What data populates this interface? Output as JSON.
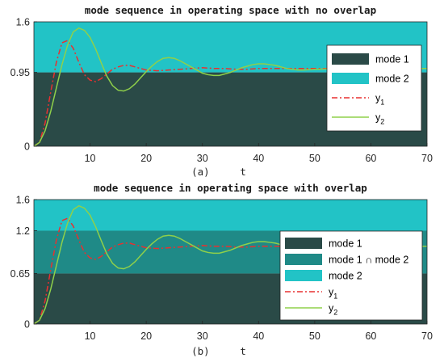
{
  "chart_data": [
    {
      "type": "line",
      "title": "mode sequence in operating space with no overlap",
      "xlabel": "(a)     t",
      "xlim": [
        0,
        70
      ],
      "ylim": [
        0,
        1.6
      ],
      "xticks": [
        10,
        20,
        30,
        40,
        50,
        60,
        70
      ],
      "yticks": [
        "0",
        "0.95",
        "1.6"
      ],
      "grid": false,
      "legend_position": "right",
      "regions": [
        {
          "name": "mode 1",
          "y_range": [
            0,
            0.95
          ],
          "color": "#2a4a47"
        },
        {
          "name": "mode 2",
          "y_range": [
            0.95,
            1.6
          ],
          "color": "#22c3c6"
        }
      ],
      "series": [
        {
          "name": "y",
          "subscript": "1",
          "style": "dash-dot",
          "color": "#e83030",
          "x": [
            0,
            1,
            2,
            3,
            4,
            5,
            6,
            7,
            8,
            9,
            10,
            11,
            12,
            13,
            14,
            15,
            16,
            17,
            18,
            19,
            20,
            22,
            24,
            26,
            28,
            30,
            32,
            34,
            36,
            38,
            40,
            45,
            50,
            55,
            60,
            65,
            70
          ],
          "values": [
            0,
            0.05,
            0.3,
            0.7,
            1.08,
            1.33,
            1.36,
            1.26,
            1.08,
            0.92,
            0.85,
            0.83,
            0.87,
            0.93,
            0.99,
            1.02,
            1.04,
            1.04,
            1.02,
            1.0,
            0.98,
            0.97,
            0.98,
            0.99,
            1.0,
            1.01,
            1.0,
            1.0,
            0.99,
            0.99,
            1.0,
            1.0,
            1.0,
            1.0,
            1.0,
            1.0,
            1.0
          ]
        },
        {
          "name": "y",
          "subscript": "2",
          "style": "solid",
          "color": "#8fd04a",
          "x": [
            0,
            1,
            2,
            3,
            4,
            5,
            6,
            7,
            8,
            9,
            10,
            11,
            12,
            13,
            14,
            15,
            16,
            17,
            18,
            19,
            20,
            21,
            22,
            23,
            24,
            25,
            26,
            27,
            28,
            29,
            30,
            31,
            32,
            33,
            34,
            35,
            36,
            37,
            38,
            39,
            40,
            41,
            42,
            43,
            44,
            45,
            46,
            47,
            48,
            50,
            55,
            60,
            65,
            70
          ],
          "values": [
            0,
            0.05,
            0.2,
            0.45,
            0.75,
            1.05,
            1.3,
            1.47,
            1.52,
            1.49,
            1.4,
            1.25,
            1.07,
            0.9,
            0.78,
            0.72,
            0.71,
            0.74,
            0.8,
            0.88,
            0.96,
            1.03,
            1.09,
            1.13,
            1.14,
            1.13,
            1.1,
            1.06,
            1.02,
            0.98,
            0.94,
            0.92,
            0.91,
            0.91,
            0.93,
            0.95,
            0.98,
            1.01,
            1.03,
            1.05,
            1.06,
            1.06,
            1.05,
            1.04,
            1.02,
            1.0,
            0.99,
            0.98,
            0.98,
            0.99,
            1.0,
            1.0,
            1.0,
            1.0
          ]
        }
      ]
    },
    {
      "type": "line",
      "title": "mode sequence in operating space with overlap",
      "xlabel": "(b)     t",
      "xlim": [
        0,
        70
      ],
      "ylim": [
        0,
        1.6
      ],
      "xticks": [
        10,
        20,
        30,
        40,
        50,
        60,
        70
      ],
      "yticks": [
        "0",
        "0.65",
        "1.2",
        "1.6"
      ],
      "grid": false,
      "legend_position": "right",
      "regions": [
        {
          "name": "mode 1",
          "y_range": [
            0,
            0.65
          ],
          "color": "#2a4a47"
        },
        {
          "name": "mode 1 ∩ mode 2",
          "y_range": [
            0.65,
            1.2
          ],
          "color": "#1f8a87"
        },
        {
          "name": "mode 2",
          "y_range": [
            1.2,
            1.6
          ],
          "color": "#22c3c6"
        }
      ],
      "series": [
        {
          "name": "y",
          "subscript": "1",
          "style": "dash-dot",
          "color": "#e83030",
          "x": [
            0,
            1,
            2,
            3,
            4,
            5,
            6,
            7,
            8,
            9,
            10,
            11,
            12,
            13,
            14,
            15,
            16,
            17,
            18,
            19,
            20,
            22,
            24,
            26,
            28,
            30,
            32,
            34,
            36,
            38,
            40,
            45,
            50,
            55,
            60,
            65,
            70
          ],
          "values": [
            0,
            0.05,
            0.3,
            0.7,
            1.08,
            1.33,
            1.36,
            1.26,
            1.08,
            0.92,
            0.85,
            0.83,
            0.87,
            0.93,
            0.99,
            1.02,
            1.04,
            1.04,
            1.02,
            1.0,
            0.98,
            0.97,
            0.98,
            0.99,
            1.0,
            1.01,
            1.0,
            1.0,
            0.99,
            0.99,
            1.0,
            1.0,
            1.0,
            1.0,
            1.0,
            1.0,
            1.0
          ]
        },
        {
          "name": "y",
          "subscript": "2",
          "style": "solid",
          "color": "#8fd04a",
          "x": [
            0,
            1,
            2,
            3,
            4,
            5,
            6,
            7,
            8,
            9,
            10,
            11,
            12,
            13,
            14,
            15,
            16,
            17,
            18,
            19,
            20,
            21,
            22,
            23,
            24,
            25,
            26,
            27,
            28,
            29,
            30,
            31,
            32,
            33,
            34,
            35,
            36,
            37,
            38,
            39,
            40,
            41,
            42,
            43,
            44,
            45,
            46,
            47,
            48,
            50,
            55,
            60,
            65,
            70
          ],
          "values": [
            0,
            0.05,
            0.2,
            0.45,
            0.75,
            1.05,
            1.3,
            1.47,
            1.52,
            1.49,
            1.4,
            1.25,
            1.07,
            0.9,
            0.78,
            0.72,
            0.71,
            0.74,
            0.8,
            0.88,
            0.96,
            1.03,
            1.09,
            1.13,
            1.14,
            1.13,
            1.1,
            1.06,
            1.02,
            0.98,
            0.94,
            0.92,
            0.91,
            0.91,
            0.93,
            0.95,
            0.98,
            1.01,
            1.03,
            1.05,
            1.06,
            1.06,
            1.05,
            1.04,
            1.02,
            1.0,
            0.99,
            0.98,
            0.98,
            0.99,
            1.0,
            1.0,
            1.0,
            1.0
          ]
        }
      ]
    }
  ]
}
